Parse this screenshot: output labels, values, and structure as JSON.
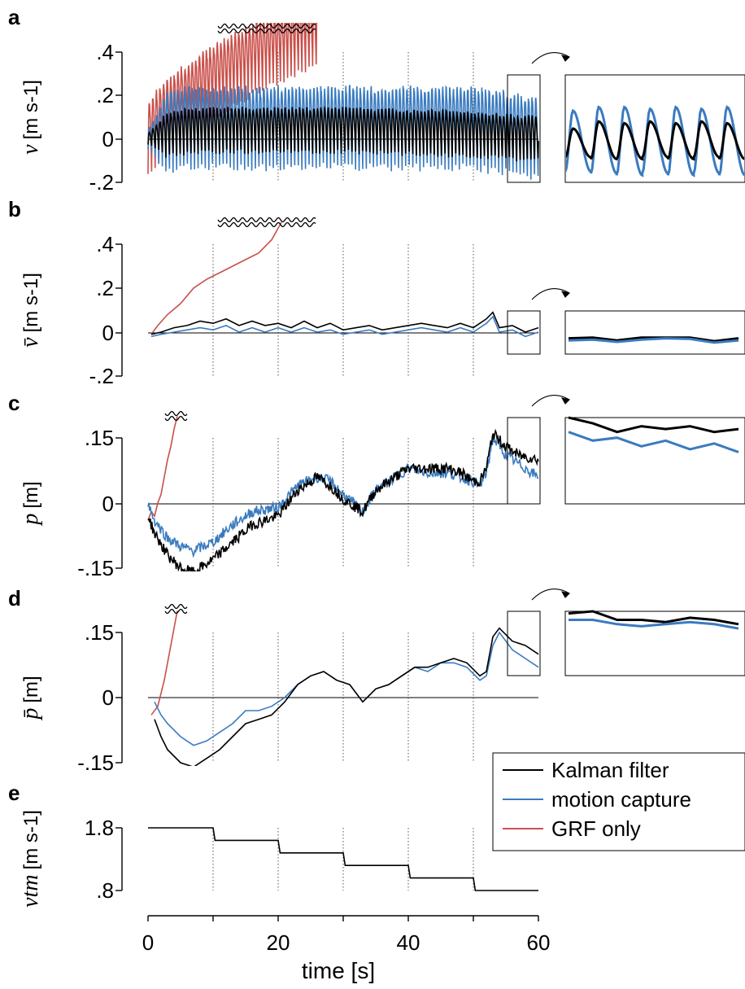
{
  "figure": {
    "xlabel": "time [s]",
    "x_ticks": [
      "0",
      "20",
      "40",
      "60"
    ],
    "legend": {
      "placement": "right",
      "items": [
        {
          "label": "Kalman filter",
          "color": "#000000"
        },
        {
          "label": "motion capture",
          "color": "#3a7bbf"
        },
        {
          "label": "GRF only",
          "color": "#c9504b"
        }
      ]
    }
  },
  "chart_data": [
    {
      "panel": "a",
      "type": "line",
      "ylabel": "v",
      "yunit": "[m s-1]",
      "ylim": [
        -0.2,
        0.4
      ],
      "xlim": [
        0,
        60
      ],
      "y_ticks": [
        ".4",
        ".2",
        "0",
        "-.2"
      ],
      "dotted_vlines_at": [
        10,
        20,
        30,
        40,
        50
      ],
      "oscillating": true,
      "series": [
        {
          "name": "GRF only",
          "color": "#c9504b",
          "x": [
            0,
            2,
            5,
            8,
            11,
            14,
            17,
            20,
            23,
            26
          ],
          "y": [
            0.0,
            0.08,
            0.16,
            0.22,
            0.28,
            0.33,
            0.38,
            0.42,
            0.46,
            0.5
          ],
          "amplitude": 0.18
        },
        {
          "name": "motion capture",
          "color": "#3a7bbf",
          "x": [
            0,
            5,
            10,
            20,
            30,
            40,
            50,
            60
          ],
          "y": [
            0.0,
            0.05,
            0.05,
            0.05,
            0.05,
            0.05,
            0.05,
            0.0
          ],
          "amplitude": 0.2
        },
        {
          "name": "Kalman filter",
          "color": "#000000",
          "x": [
            0,
            5,
            10,
            20,
            30,
            40,
            50,
            60
          ],
          "y": [
            0.0,
            0.03,
            0.04,
            0.04,
            0.04,
            0.03,
            0.02,
            0.0
          ],
          "amplitude": 0.11
        }
      ],
      "inset_series": [
        {
          "color": "#3a7bbf",
          "peaks": [
            0.2,
            0.22,
            0.22,
            0.21,
            0.22,
            0.21,
            0.22
          ],
          "troughs": [
            -0.14,
            -0.15,
            -0.16,
            -0.15,
            -0.16,
            -0.15,
            -0.16
          ]
        },
        {
          "color": "#000000",
          "peaks": [
            0.1,
            0.14,
            0.13,
            0.14,
            0.13,
            0.14,
            0.13
          ],
          "troughs": [
            -0.06,
            -0.07,
            -0.07,
            -0.06,
            -0.07,
            -0.06,
            -0.07
          ]
        }
      ]
    },
    {
      "panel": "b",
      "type": "line",
      "ylabel": "v̄",
      "yunit": "[m s-1]",
      "ylim": [
        -0.2,
        0.4
      ],
      "xlim": [
        0,
        60
      ],
      "y_ticks": [
        ".4",
        ".2",
        "0",
        "-.2"
      ],
      "dotted_vlines_at": [
        10,
        20,
        30,
        40,
        50
      ],
      "series": [
        {
          "name": "GRF only",
          "color": "#c9504b",
          "x": [
            0.5,
            1.5,
            3,
            5,
            7,
            9,
            11,
            13,
            15,
            17,
            19,
            20.5
          ],
          "y": [
            -0.01,
            0.03,
            0.08,
            0.13,
            0.2,
            0.24,
            0.27,
            0.3,
            0.33,
            0.36,
            0.42,
            0.5
          ]
        },
        {
          "name": "Kalman filter",
          "color": "#000000",
          "x": [
            0.5,
            2,
            4,
            6,
            8,
            10,
            12,
            14,
            16,
            18,
            20,
            22,
            24,
            26,
            28,
            30,
            32,
            34,
            36,
            38,
            40,
            42,
            44,
            46,
            48,
            50,
            52,
            53,
            54,
            56,
            58,
            60
          ],
          "y": [
            -0.01,
            0.0,
            0.02,
            0.03,
            0.05,
            0.04,
            0.06,
            0.03,
            0.05,
            0.03,
            0.04,
            0.02,
            0.05,
            0.02,
            0.04,
            0.01,
            0.02,
            0.03,
            0.01,
            0.02,
            0.03,
            0.04,
            0.03,
            0.02,
            0.04,
            0.02,
            0.06,
            0.09,
            0.02,
            0.03,
            0.0,
            0.02
          ]
        },
        {
          "name": "motion capture",
          "color": "#3a7bbf",
          "x": [
            0.5,
            2,
            4,
            6,
            8,
            10,
            12,
            14,
            16,
            18,
            20,
            22,
            24,
            26,
            28,
            30,
            32,
            34,
            36,
            38,
            40,
            42,
            44,
            46,
            48,
            50,
            52,
            53,
            54,
            56,
            58,
            60
          ],
          "y": [
            -0.02,
            -0.01,
            0.0,
            0.01,
            0.02,
            0.01,
            0.03,
            0.0,
            0.02,
            0.0,
            0.02,
            0.0,
            0.02,
            0.0,
            0.01,
            -0.01,
            0.0,
            0.01,
            -0.01,
            0.0,
            0.01,
            0.02,
            0.01,
            0.0,
            0.02,
            0.0,
            0.04,
            0.07,
            0.0,
            0.01,
            -0.02,
            0.0
          ]
        }
      ],
      "inset_series": [
        {
          "color": "#000000",
          "y": [
            0.02,
            0.03,
            -0.01,
            0.03,
            0.03,
            0.03,
            -0.02,
            0.02
          ]
        },
        {
          "color": "#3a7bbf",
          "y": [
            -0.01,
            0.0,
            -0.03,
            0.0,
            0.02,
            0.01,
            -0.04,
            -0.01
          ]
        }
      ]
    },
    {
      "panel": "c",
      "type": "line",
      "ylabel": "p",
      "yunit": "[m]",
      "ylim": [
        -0.15,
        0.15
      ],
      "xlim": [
        0,
        60
      ],
      "y_ticks": [
        ".15",
        "0",
        "-.15"
      ],
      "dotted_vlines_at": [
        10,
        20,
        30,
        40,
        50
      ],
      "noisy": true,
      "series": [
        {
          "name": "GRF only",
          "color": "#c9504b",
          "x": [
            0,
            0.5,
            1,
            1.5,
            2,
            2.5,
            3,
            3.5,
            4,
            4.5
          ],
          "y": [
            -0.04,
            -0.02,
            -0.03,
            0.0,
            0.02,
            0.06,
            0.1,
            0.13,
            0.17,
            0.2
          ]
        },
        {
          "name": "motion capture",
          "color": "#3a7bbf",
          "x": [
            0,
            1,
            3,
            5,
            7,
            10,
            13,
            16,
            20,
            23,
            26,
            28,
            30,
            33,
            35,
            37,
            40,
            43,
            46,
            48,
            50,
            51,
            52,
            53,
            55,
            57,
            60
          ],
          "y": [
            0.0,
            -0.04,
            -0.08,
            -0.1,
            -0.11,
            -0.09,
            -0.05,
            -0.02,
            -0.01,
            0.04,
            0.06,
            0.05,
            0.02,
            -0.02,
            0.03,
            0.05,
            0.08,
            0.07,
            0.07,
            0.06,
            0.05,
            0.04,
            0.07,
            0.15,
            0.11,
            0.09,
            0.06
          ]
        },
        {
          "name": "Kalman filter",
          "color": "#000000",
          "x": [
            0,
            1,
            3,
            5,
            7,
            10,
            13,
            16,
            20,
            23,
            26,
            28,
            30,
            33,
            35,
            37,
            40,
            43,
            46,
            48,
            50,
            51,
            52,
            53,
            55,
            57,
            60
          ],
          "y": [
            -0.03,
            -0.07,
            -0.12,
            -0.15,
            -0.16,
            -0.13,
            -0.09,
            -0.05,
            -0.03,
            0.03,
            0.06,
            0.04,
            0.01,
            -0.02,
            0.03,
            0.05,
            0.08,
            0.08,
            0.08,
            0.07,
            0.05,
            0.05,
            0.08,
            0.16,
            0.13,
            0.11,
            0.1
          ]
        }
      ],
      "inset_series": [
        {
          "color": "#000000",
          "y": [
            0.15,
            0.13,
            0.1,
            0.12,
            0.11,
            0.12,
            0.1,
            0.11
          ]
        },
        {
          "color": "#3a7bbf",
          "y": [
            0.1,
            0.07,
            0.08,
            0.05,
            0.07,
            0.04,
            0.06,
            0.03
          ]
        }
      ]
    },
    {
      "panel": "d",
      "type": "line",
      "ylabel": "p̄",
      "yunit": "[m]",
      "ylim": [
        -0.15,
        0.15
      ],
      "xlim": [
        0,
        60
      ],
      "y_ticks": [
        ".15",
        "0",
        "-.15"
      ],
      "dotted_vlines_at": [
        10,
        20,
        30,
        40,
        50
      ],
      "series": [
        {
          "name": "GRF only",
          "color": "#c9504b",
          "x": [
            0.5,
            1.5,
            2.5,
            3.5,
            4.5
          ],
          "y": [
            -0.04,
            -0.02,
            0.04,
            0.12,
            0.2
          ]
        },
        {
          "name": "motion capture",
          "color": "#3a7bbf",
          "x": [
            1,
            2,
            3,
            5,
            7,
            9,
            11,
            13,
            15,
            17,
            19,
            21,
            23,
            25,
            27,
            29,
            31,
            33,
            35,
            37,
            39,
            41,
            43,
            45,
            47,
            49,
            51,
            52,
            53,
            54,
            56,
            58,
            60
          ],
          "y": [
            -0.01,
            -0.04,
            -0.06,
            -0.09,
            -0.11,
            -0.1,
            -0.08,
            -0.06,
            -0.03,
            -0.03,
            -0.02,
            0.0,
            0.03,
            0.05,
            0.06,
            0.04,
            0.03,
            -0.01,
            0.02,
            0.03,
            0.05,
            0.07,
            0.06,
            0.08,
            0.08,
            0.07,
            0.04,
            0.05,
            0.12,
            0.15,
            0.11,
            0.09,
            0.07
          ]
        },
        {
          "name": "Kalman filter",
          "color": "#000000",
          "x": [
            1,
            2,
            3,
            5,
            7,
            9,
            11,
            13,
            15,
            17,
            19,
            21,
            23,
            25,
            27,
            29,
            31,
            33,
            35,
            37,
            39,
            41,
            43,
            45,
            47,
            49,
            51,
            52,
            53,
            54,
            56,
            58,
            60
          ],
          "y": [
            -0.05,
            -0.09,
            -0.12,
            -0.15,
            -0.16,
            -0.14,
            -0.12,
            -0.09,
            -0.06,
            -0.05,
            -0.04,
            -0.01,
            0.03,
            0.05,
            0.06,
            0.04,
            0.03,
            -0.01,
            0.02,
            0.03,
            0.05,
            0.07,
            0.07,
            0.08,
            0.09,
            0.08,
            0.05,
            0.06,
            0.14,
            0.16,
            0.13,
            0.12,
            0.1
          ]
        }
      ],
      "inset_series": [
        {
          "color": "#000000",
          "y": [
            0.14,
            0.15,
            0.11,
            0.11,
            0.1,
            0.12,
            0.11,
            0.09
          ]
        },
        {
          "color": "#3a7bbf",
          "y": [
            0.11,
            0.11,
            0.09,
            0.08,
            0.09,
            0.1,
            0.09,
            0.07
          ]
        }
      ]
    },
    {
      "panel": "e",
      "type": "line",
      "ylabel": "vtm",
      "yunit": "[m s-1]",
      "ylim": [
        0.8,
        1.8
      ],
      "xlim": [
        0,
        60
      ],
      "y_ticks": [
        "1.8",
        ".8"
      ],
      "dotted_vlines_at": [
        10,
        20,
        30,
        40,
        50
      ],
      "series": [
        {
          "name": "Kalman filter",
          "color": "#000000",
          "x": [
            0,
            10,
            10.3,
            20,
            20.3,
            30,
            30.3,
            40,
            40.3,
            50,
            50.3,
            60
          ],
          "y": [
            1.8,
            1.8,
            1.6,
            1.6,
            1.4,
            1.4,
            1.2,
            1.2,
            1.0,
            1.0,
            0.8,
            0.8
          ]
        }
      ]
    }
  ]
}
